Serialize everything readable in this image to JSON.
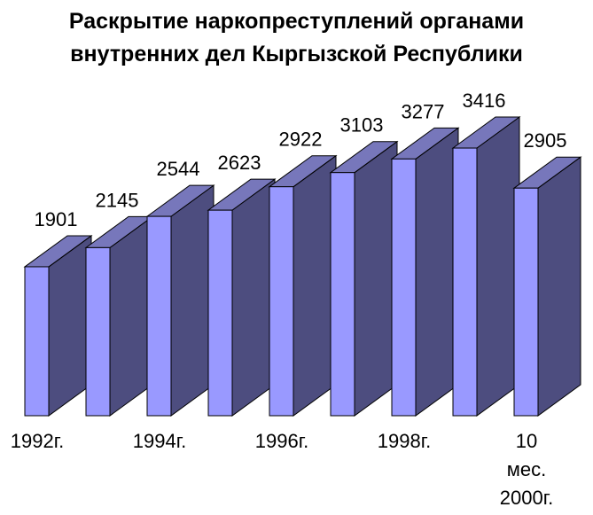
{
  "chart_data": {
    "type": "bar",
    "style": "3d",
    "title_lines": [
      "Раскрытие наркопреступлений органами",
      "внутренних дел Кыргызской Республики"
    ],
    "categories": [
      "1992г.",
      "",
      "1994г.",
      "",
      "1996г.",
      "",
      "1998г.",
      "",
      "10 мес. 2000г."
    ],
    "category_label_lines": [
      [
        "1992г."
      ],
      [],
      [
        "1994г."
      ],
      [],
      [
        "1996г."
      ],
      [],
      [
        "1998г."
      ],
      [],
      [
        "10",
        "мес.",
        "2000г."
      ]
    ],
    "values": [
      1901,
      2145,
      2544,
      2623,
      2922,
      3103,
      3277,
      3416,
      2905
    ],
    "ylim": [
      0,
      3416
    ],
    "grid": false,
    "legend": "none",
    "colors": {
      "front": "#9999ff",
      "top": "#7777bb",
      "side": "#4d4d7f",
      "outline": "#000000"
    }
  }
}
